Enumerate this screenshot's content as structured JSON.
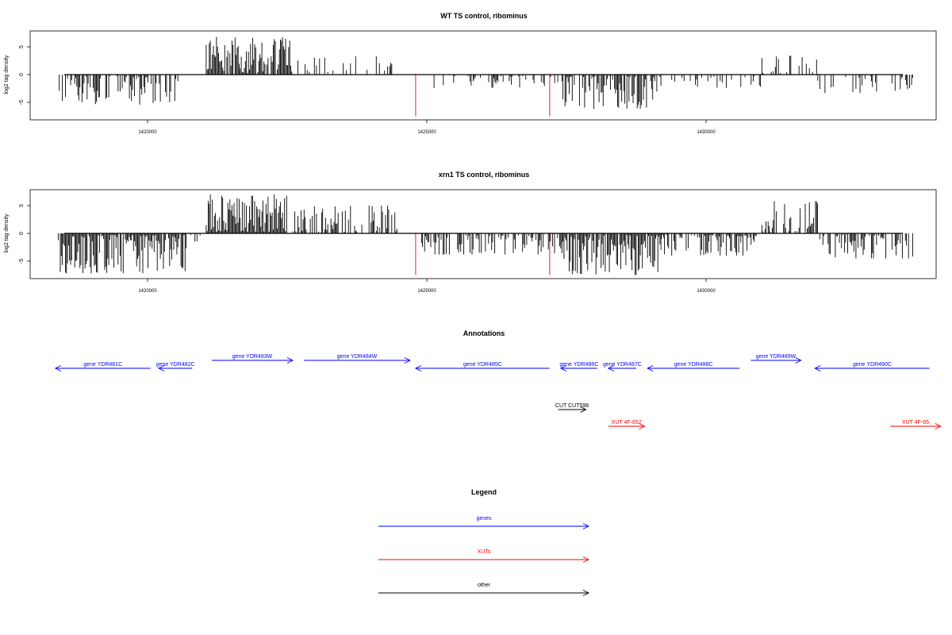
{
  "chart_data": [
    {
      "type": "bar",
      "title": "WT TS control, ribominus",
      "ylabel": "log2 tag density",
      "xlim": [
        1418300,
        1434000
      ],
      "ylim": [
        -8,
        8
      ],
      "x_ticks": [
        1420000,
        1425000,
        1430000
      ],
      "x_tick_labels": [
        "1420000",
        "1425000",
        "1430000"
      ],
      "y_ticks": [
        5,
        0,
        -5
      ],
      "y_tick_labels": [
        "5",
        "0",
        "-5"
      ],
      "grid": false,
      "legend": "none",
      "profile": [
        {
          "start": 1418400,
          "end": 1420600,
          "sign": -1,
          "max": 5.4,
          "density": 0.55
        },
        {
          "start": 1421050,
          "end": 1422600,
          "sign": 1,
          "max": 6.8,
          "density": 0.95
        },
        {
          "start": 1422600,
          "end": 1424400,
          "sign": 1,
          "max": 3.3,
          "density": 0.25
        },
        {
          "start": 1425000,
          "end": 1427400,
          "sign": -1,
          "max": 2.4,
          "density": 0.25
        },
        {
          "start": 1427400,
          "end": 1429200,
          "sign": -1,
          "max": 6.2,
          "density": 0.75
        },
        {
          "start": 1429200,
          "end": 1431000,
          "sign": -1,
          "max": 2.4,
          "density": 0.2
        },
        {
          "start": 1431000,
          "end": 1432000,
          "sign": 1,
          "max": 3.4,
          "density": 0.3
        },
        {
          "start": 1432000,
          "end": 1433700,
          "sign": -1,
          "max": 3.3,
          "density": 0.35
        }
      ],
      "markers": [
        {
          "x": 1424800,
          "y": -7.5,
          "color": "#d62728"
        },
        {
          "x": 1427200,
          "y": -7.5,
          "color": "#d62728"
        }
      ]
    },
    {
      "type": "bar",
      "title": "xrn1 TS control, ribominus",
      "ylabel": "log2 tag density",
      "xlim": [
        1418300,
        1434000
      ],
      "ylim": [
        -8,
        8
      ],
      "x_ticks": [
        1420000,
        1425000,
        1430000
      ],
      "x_tick_labels": [
        "1420000",
        "1425000",
        "1430000"
      ],
      "y_ticks": [
        5,
        0,
        -5
      ],
      "y_tick_labels": [
        "5",
        "0",
        "-5"
      ],
      "grid": false,
      "legend": "none",
      "profile": [
        {
          "start": 1418400,
          "end": 1420700,
          "sign": -1,
          "max": 7.2,
          "density": 0.9
        },
        {
          "start": 1420700,
          "end": 1421000,
          "sign": -1,
          "max": 2.0,
          "density": 0.3
        },
        {
          "start": 1421050,
          "end": 1422500,
          "sign": 1,
          "max": 7.0,
          "density": 1.0
        },
        {
          "start": 1422600,
          "end": 1424500,
          "sign": 1,
          "max": 5.0,
          "density": 0.6
        },
        {
          "start": 1424850,
          "end": 1427400,
          "sign": -1,
          "max": 3.8,
          "density": 0.55
        },
        {
          "start": 1427400,
          "end": 1429200,
          "sign": -1,
          "max": 7.5,
          "density": 0.95
        },
        {
          "start": 1429200,
          "end": 1430900,
          "sign": -1,
          "max": 4.0,
          "density": 0.6
        },
        {
          "start": 1431000,
          "end": 1432000,
          "sign": 1,
          "max": 5.8,
          "density": 0.6
        },
        {
          "start": 1432000,
          "end": 1433700,
          "sign": -1,
          "max": 4.5,
          "density": 0.6
        }
      ],
      "markers": [
        {
          "x": 1424800,
          "y": -7.5,
          "color": "#d62728"
        },
        {
          "x": 1427200,
          "y": -7.5,
          "color": "#d62728"
        }
      ]
    }
  ],
  "annotations": {
    "title": "Annotations",
    "features": [
      {
        "label": "gene YDR481C",
        "kind": "gene",
        "strand": "-",
        "start": 1418350,
        "end": 1420050,
        "row": 1
      },
      {
        "label": "gene YDR482C",
        "kind": "gene",
        "strand": "-",
        "start": 1420200,
        "end": 1420800,
        "row": 1
      },
      {
        "label": "gene YDR483W",
        "kind": "gene",
        "strand": "+",
        "start": 1421150,
        "end": 1422600,
        "row": 0
      },
      {
        "label": "gene YDR484W",
        "kind": "gene",
        "strand": "+",
        "start": 1422800,
        "end": 1424700,
        "row": 0
      },
      {
        "label": "gene YDR485C",
        "kind": "gene",
        "strand": "-",
        "start": 1424800,
        "end": 1427200,
        "row": 1
      },
      {
        "label": "gene YDR486C",
        "kind": "gene",
        "strand": "-",
        "start": 1427400,
        "end": 1428050,
        "row": 1
      },
      {
        "label": "gene YDR487C",
        "kind": "gene",
        "strand": "-",
        "start": 1428250,
        "end": 1428750,
        "row": 1
      },
      {
        "label": "gene YDR488C",
        "kind": "gene",
        "strand": "-",
        "start": 1428950,
        "end": 1430600,
        "row": 1
      },
      {
        "label": "gene YDR489W",
        "kind": "gene",
        "strand": "+",
        "start": 1430800,
        "end": 1431700,
        "row": 0
      },
      {
        "label": "gene YDR490C",
        "kind": "gene",
        "strand": "-",
        "start": 1431950,
        "end": 1434000,
        "row": 1
      },
      {
        "label": "CUT CUT598",
        "kind": "other",
        "strand": "+",
        "start": 1427350,
        "end": 1427850,
        "row": 2
      },
      {
        "label": "XUT 4F-652",
        "kind": "xut",
        "strand": "+",
        "start": 1428250,
        "end": 1428900,
        "row": 3
      },
      {
        "label": "XUT 4F-65",
        "kind": "xut",
        "strand": "+",
        "start": 1433300,
        "end": 1434200,
        "row": 3
      }
    ]
  },
  "legend": {
    "title": "Legend",
    "entries": [
      {
        "label": "genes",
        "color": "#0000ff"
      },
      {
        "label": "XUTs",
        "color": "#ff0000"
      },
      {
        "label": "other",
        "color": "#000000"
      }
    ]
  },
  "colors": {
    "gene": "#0000ff",
    "xut": "#ff0000",
    "other": "#000000",
    "signal": "#000000",
    "marker": "#d62728"
  }
}
